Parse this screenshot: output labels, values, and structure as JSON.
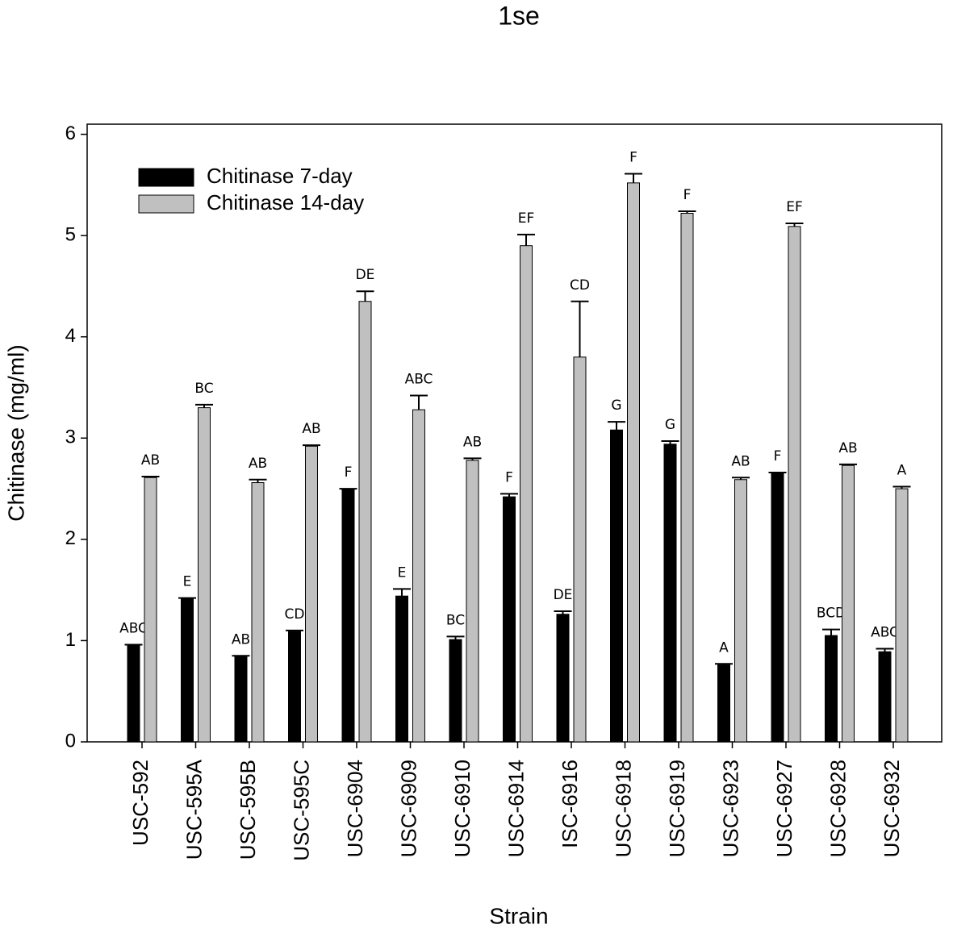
{
  "chart_data": {
    "type": "bar",
    "title": "1se",
    "x_label": "Strain",
    "y_label": "Chitinase (mg/ml)",
    "categories": [
      "USC-592",
      "USC-595A",
      "USC-595B",
      "USC-595C",
      "USC-6904",
      "USC-6909",
      "USC-6910",
      "USC-6914",
      "ISC-6916",
      "USC-6918",
      "USC-6919",
      "USC-6923",
      "USC-6927",
      "USC-6928",
      "USC-6932"
    ],
    "series": [
      {
        "name": "Chitinase 7-day",
        "color": "#000000",
        "values": [
          0.95,
          1.41,
          0.84,
          1.09,
          2.49,
          1.44,
          1.01,
          2.42,
          1.26,
          3.08,
          2.94,
          0.76,
          2.65,
          1.05,
          0.89
        ],
        "errors": [
          0.01,
          0.01,
          0.01,
          0.01,
          0.01,
          0.07,
          0.03,
          0.03,
          0.03,
          0.08,
          0.03,
          0.01,
          0.01,
          0.06,
          0.03
        ],
        "letters": [
          "ABC",
          "E",
          "AB",
          "CD",
          "F",
          "E",
          "BC",
          "F",
          "DE",
          "G",
          "G",
          "A",
          "F",
          "BCD",
          "ABC"
        ]
      },
      {
        "name": "Chitinase 14-day",
        "color": "#c0c0c0",
        "values": [
          2.61,
          3.3,
          2.56,
          2.92,
          4.35,
          3.28,
          2.78,
          4.9,
          3.8,
          5.52,
          5.22,
          2.59,
          5.09,
          2.73,
          2.5
        ],
        "errors": [
          0.01,
          0.03,
          0.03,
          0.01,
          0.1,
          0.14,
          0.02,
          0.11,
          0.55,
          0.09,
          0.02,
          0.02,
          0.03,
          0.01,
          0.02
        ],
        "letters": [
          "AB",
          "BC",
          "AB",
          "AB",
          "DE",
          "ABC",
          "AB",
          "EF",
          "CD",
          "F",
          "F",
          "AB",
          "EF",
          "AB",
          "A"
        ]
      }
    ],
    "ylim": [
      0,
      6.1
    ],
    "yticks": [
      0,
      1,
      2,
      3,
      4,
      5,
      6
    ],
    "legend": "upper-left"
  }
}
